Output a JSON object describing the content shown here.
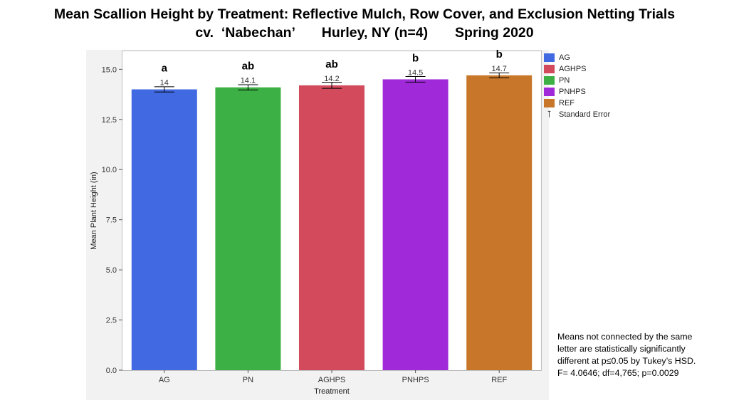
{
  "title_line1": "Mean Scallion Height by Treatment: Reflective Mulch, Row Cover, and Exclusion Netting Trials",
  "title_line2": "cv.  ‘Nabechan’       Hurley, NY (n=4)       Spring 2020",
  "note_lines": [
    "Means not connected by the same",
    "letter are statistically significantly",
    "different at p≤0.05 by Tukey’s HSD.",
    "F= 4.0646; df=4,765; p=0.0029"
  ],
  "legend": {
    "items": [
      {
        "label": "AG",
        "color": "#4169e1"
      },
      {
        "label": "AGHPS",
        "color": "#d34a5c"
      },
      {
        "label": "PN",
        "color": "#3cb044"
      },
      {
        "label": "PNHPS",
        "color": "#a02ad9"
      },
      {
        "label": "REF",
        "color": "#c8772a"
      }
    ],
    "se_label": "Standard Error"
  },
  "chart_data": {
    "type": "bar",
    "xlabel": "Treatment",
    "ylabel": "Mean Plant Height (in)",
    "ylim": [
      0,
      15.9
    ],
    "yticks": [
      0.0,
      2.5,
      5.0,
      7.5,
      10.0,
      12.5,
      15.0
    ],
    "ytick_labels": [
      "0.0",
      "2.5",
      "5.0",
      "7.5",
      "10.0",
      "12.5",
      "15.0"
    ],
    "categories": [
      "AG",
      "PN",
      "AGHPS",
      "PNHPS",
      "REF"
    ],
    "values": [
      14.0,
      14.1,
      14.2,
      14.5,
      14.7
    ],
    "value_labels": [
      "14",
      "14.1",
      "14.2",
      "14.5",
      "14.7"
    ],
    "errors": [
      0.13,
      0.13,
      0.15,
      0.14,
      0.12
    ],
    "letters": [
      "a",
      "ab",
      "ab",
      "b",
      "b"
    ],
    "colors": [
      "#4169e1",
      "#3cb044",
      "#d34a5c",
      "#a02ad9",
      "#c8772a"
    ],
    "grid": false
  }
}
